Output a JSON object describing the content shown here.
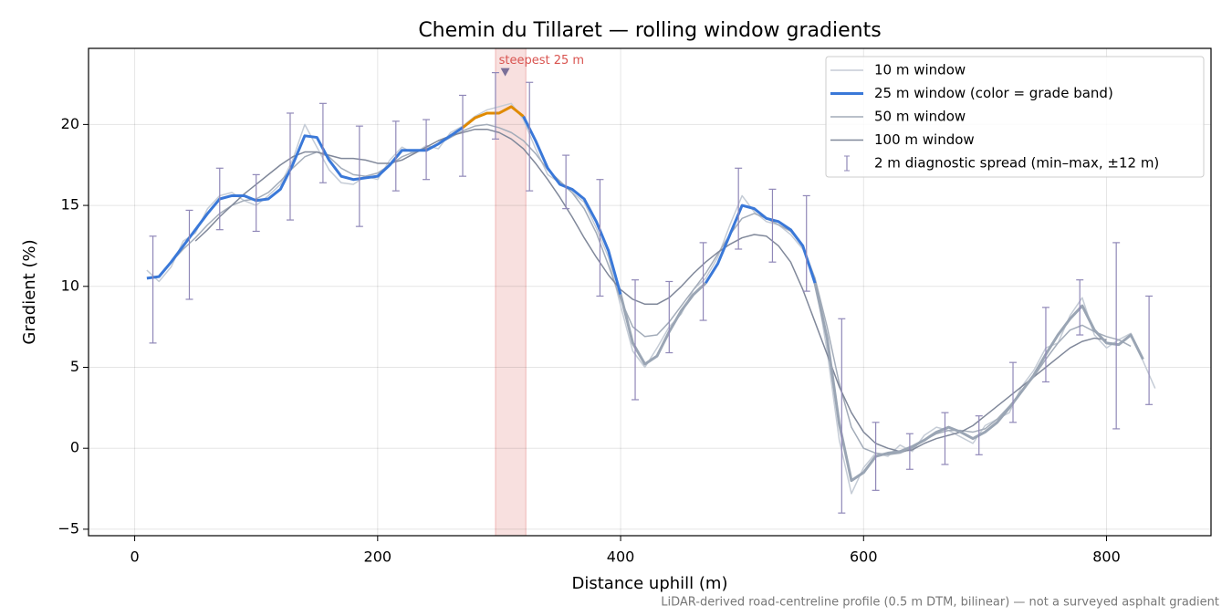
{
  "chart_data": {
    "type": "line",
    "title": "Chemin du Tillaret — rolling window gradients",
    "xlabel": "Distance uphill (m)",
    "ylabel": "Gradient (%)",
    "footnote": "LiDAR-derived road-centreline profile (0.5 m DTM, bilinear) — not a surveyed asphalt gradient",
    "xlim": [
      -38,
      886
    ],
    "ylim": [
      -5.4,
      24.7
    ],
    "xticks": [
      0,
      200,
      400,
      600,
      800
    ],
    "yticks": [
      {
        "value": -5,
        "label": "−5"
      },
      0,
      5,
      10,
      15,
      20
    ],
    "grid": true,
    "legend": "upper right",
    "x": [
      10,
      20,
      30,
      40,
      50,
      60,
      70,
      80,
      90,
      100,
      110,
      120,
      130,
      140,
      150,
      160,
      170,
      180,
      190,
      200,
      210,
      220,
      230,
      240,
      250,
      260,
      270,
      280,
      290,
      300,
      310,
      320,
      330,
      340,
      350,
      360,
      370,
      380,
      390,
      400,
      410,
      420,
      430,
      440,
      450,
      460,
      470,
      480,
      490,
      500,
      510,
      520,
      530,
      540,
      550,
      560,
      570,
      580,
      590,
      600,
      610,
      620,
      630,
      640,
      650,
      660,
      670,
      680,
      690,
      700,
      710,
      720,
      730,
      740,
      750,
      760,
      770,
      780,
      790,
      800,
      810,
      820,
      830,
      840
    ],
    "series": [
      {
        "name": "10 m window",
        "color": "#c5ccd6",
        "width": 1.5,
        "values": [
          11.0,
          10.3,
          11.2,
          12.8,
          13.3,
          14.8,
          15.6,
          15.8,
          15.3,
          15.0,
          15.6,
          16.3,
          17.8,
          20.0,
          18.6,
          17.2,
          16.4,
          16.3,
          16.8,
          16.6,
          17.8,
          18.6,
          18.2,
          18.7,
          18.5,
          19.5,
          19.9,
          20.5,
          20.9,
          21.1,
          21.3,
          20.3,
          18.5,
          16.9,
          16.4,
          15.8,
          15.2,
          13.6,
          11.8,
          8.8,
          6.0,
          5.0,
          6.2,
          7.5,
          8.3,
          9.8,
          10.5,
          11.8,
          13.8,
          15.6,
          14.6,
          14.0,
          13.8,
          13.2,
          12.3,
          10.5,
          6.0,
          0.5,
          -2.8,
          -1.2,
          -0.3,
          -0.5,
          0.2,
          -0.2,
          0.8,
          1.3,
          1.1,
          0.7,
          0.3,
          1.4,
          1.8,
          2.2,
          3.8,
          4.8,
          6.2,
          6.5,
          8.2,
          9.3,
          7.0,
          6.2,
          6.7,
          7.1,
          5.4,
          3.7
        ]
      },
      {
        "name": "25 m window (color = grade band)",
        "color": "#3a78d8",
        "width": 3,
        "grade_bands": {
          "thresholds": [
            10,
            20
          ],
          "colors": [
            "#9aa5b4",
            "#3a78d8",
            "#e08a00"
          ]
        },
        "values": [
          10.5,
          10.6,
          11.5,
          12.5,
          13.5,
          14.5,
          15.4,
          15.6,
          15.6,
          15.3,
          15.4,
          16.0,
          17.5,
          19.3,
          19.2,
          17.8,
          16.8,
          16.6,
          16.7,
          16.8,
          17.5,
          18.4,
          18.4,
          18.4,
          18.8,
          19.3,
          19.8,
          20.4,
          20.7,
          20.7,
          21.1,
          20.5,
          19.0,
          17.3,
          16.3,
          16.0,
          15.4,
          14.0,
          12.2,
          9.5,
          6.5,
          5.2,
          5.7,
          7.2,
          8.5,
          9.5,
          10.2,
          11.4,
          13.2,
          15.0,
          14.8,
          14.2,
          14.0,
          13.5,
          12.5,
          10.2,
          6.8,
          1.5,
          -2.0,
          -1.5,
          -0.5,
          -0.3,
          -0.2,
          0.1,
          0.5,
          1.0,
          1.3,
          1.0,
          0.6,
          1.0,
          1.6,
          2.5,
          3.5,
          4.5,
          5.8,
          7.0,
          8.0,
          8.8,
          7.3,
          6.5,
          6.4,
          7.0,
          5.5,
          null
        ]
      },
      {
        "name": "50 m window",
        "color": "#a3acb9",
        "width": 1.5,
        "values": [
          null,
          null,
          11.5,
          12.3,
          13.0,
          13.8,
          14.5,
          15.0,
          15.3,
          15.4,
          15.8,
          16.5,
          17.3,
          18.0,
          18.3,
          18.0,
          17.3,
          16.9,
          16.8,
          17.0,
          17.5,
          18.0,
          18.3,
          18.5,
          18.8,
          19.2,
          19.6,
          19.9,
          20.0,
          19.8,
          19.5,
          19.0,
          18.2,
          17.2,
          16.5,
          15.8,
          14.8,
          13.3,
          11.3,
          9.2,
          7.5,
          6.9,
          7.0,
          7.8,
          8.8,
          9.8,
          10.8,
          12.0,
          13.2,
          14.2,
          14.5,
          14.2,
          13.8,
          13.4,
          12.5,
          10.5,
          7.5,
          4.0,
          1.3,
          0.0,
          -0.3,
          -0.4,
          -0.3,
          0.0,
          0.5,
          0.9,
          1.1,
          1.1,
          1.0,
          1.2,
          1.8,
          2.6,
          3.5,
          4.4,
          5.5,
          6.5,
          7.3,
          7.6,
          7.2,
          6.9,
          6.7,
          6.3,
          null,
          null
        ]
      },
      {
        "name": "100 m window",
        "color": "#80889a",
        "width": 1.5,
        "values": [
          null,
          null,
          null,
          null,
          12.8,
          13.5,
          14.3,
          15.0,
          15.7,
          16.3,
          16.9,
          17.5,
          18.0,
          18.3,
          18.3,
          18.1,
          17.9,
          17.9,
          17.8,
          17.6,
          17.6,
          17.8,
          18.2,
          18.6,
          19.0,
          19.3,
          19.5,
          19.7,
          19.7,
          19.5,
          19.1,
          18.5,
          17.6,
          16.6,
          15.5,
          14.3,
          13.0,
          11.8,
          10.7,
          9.8,
          9.2,
          8.9,
          8.9,
          9.3,
          10.0,
          10.8,
          11.5,
          12.1,
          12.6,
          13.0,
          13.2,
          13.1,
          12.5,
          11.5,
          9.8,
          7.8,
          5.8,
          3.8,
          2.2,
          1.0,
          0.3,
          0.0,
          -0.2,
          -0.1,
          0.3,
          0.6,
          0.8,
          1.0,
          1.4,
          2.0,
          2.6,
          3.2,
          3.8,
          4.4,
          5.0,
          5.6,
          6.2,
          6.6,
          6.8,
          6.7,
          null,
          null,
          null,
          null
        ]
      }
    ],
    "errorbars": {
      "name": "2 m diagnostic spread (min–max, ±12 m)",
      "color": "#9088b8",
      "x": [
        15,
        45,
        70,
        100,
        128,
        155,
        185,
        215,
        240,
        270,
        297,
        325,
        355,
        383,
        412,
        440,
        468,
        497,
        525,
        553,
        582,
        610,
        638,
        667,
        695,
        723,
        750,
        778,
        808,
        835
      ],
      "low": [
        6.5,
        9.2,
        13.5,
        13.4,
        14.1,
        16.4,
        13.7,
        15.9,
        16.6,
        16.8,
        19.1,
        15.9,
        14.8,
        9.4,
        3.0,
        5.9,
        7.9,
        12.3,
        11.5,
        9.7,
        -4.0,
        -2.6,
        -1.3,
        -1.0,
        -0.4,
        1.6,
        4.1,
        7.0,
        1.2,
        2.7
      ],
      "high": [
        13.1,
        14.7,
        17.3,
        16.9,
        20.7,
        21.3,
        19.9,
        20.2,
        20.3,
        21.8,
        23.2,
        22.6,
        18.1,
        16.6,
        10.4,
        10.3,
        12.7,
        17.3,
        16.0,
        15.6,
        8.0,
        1.6,
        0.9,
        2.2,
        2.0,
        5.3,
        8.7,
        10.4,
        12.7,
        9.4
      ]
    },
    "highlight": {
      "x0": 297,
      "x1": 322,
      "label": "steepest 25 m",
      "marker_x": 305,
      "marker_y": 23.2,
      "color": "#d9534f"
    }
  }
}
